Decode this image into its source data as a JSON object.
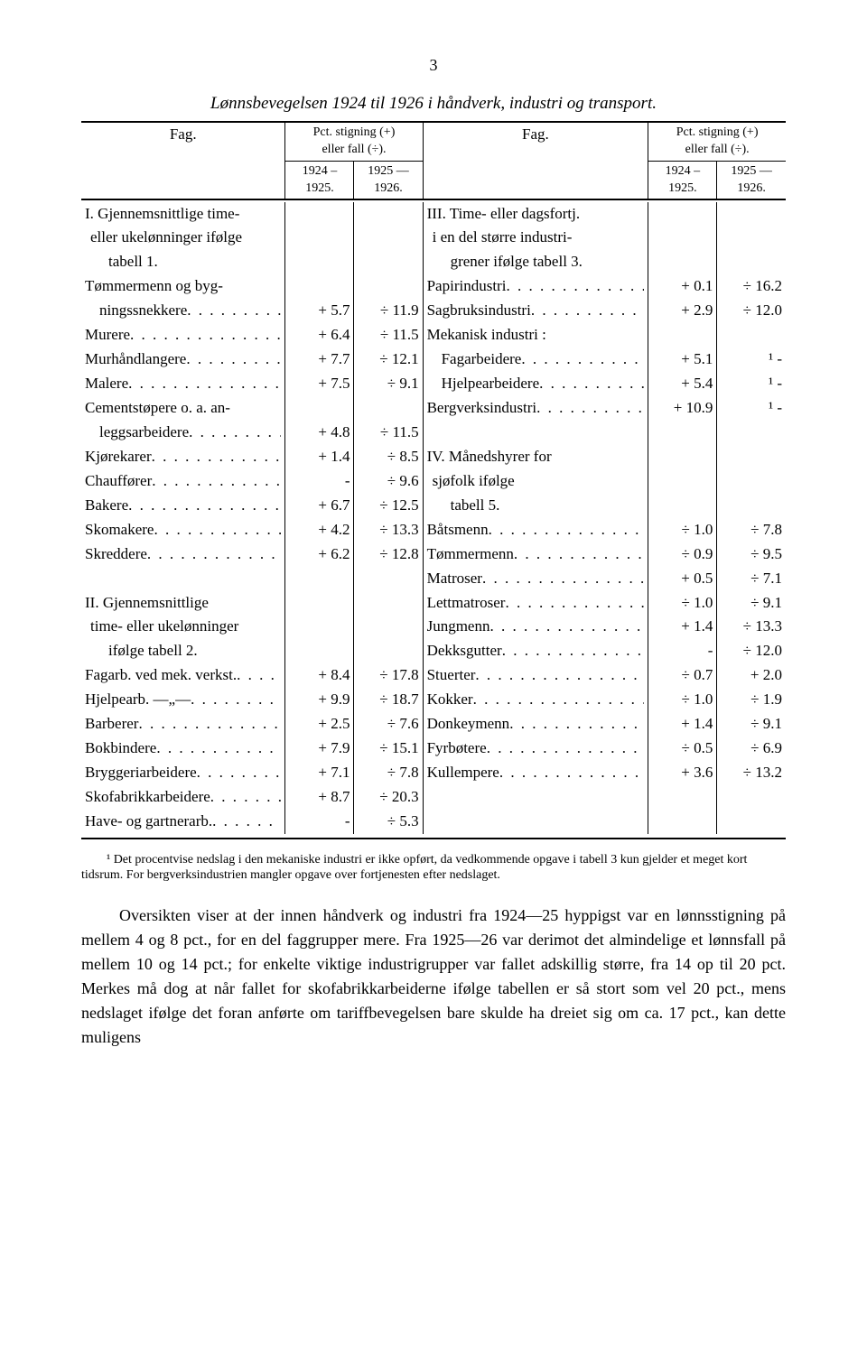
{
  "page_number": "3",
  "title": "Lønnsbevegelsen 1924 til 1926 i håndverk, industri og transport.",
  "header": {
    "fag": "Fag.",
    "pct_top": "Pct. stigning (+)",
    "pct_bot": "eller fall (÷).",
    "yr_a": "1924 –",
    "yr_a2": "1925.",
    "yr_b": "1925 —",
    "yr_b2": "1926."
  },
  "left": {
    "sec1_l1": "I. Gjennemsnittlige time-",
    "sec1_l2": "eller ukelønninger ifølge",
    "sec1_l3": "tabell 1.",
    "sec2_l1": "II. Gjennemsnittlige",
    "sec2_l2": "time- eller ukelønninger",
    "sec2_l3": "ifølge tabell 2.",
    "rows1": [
      {
        "label": "Tømmermenn og byg-",
        "a": "",
        "b": ""
      },
      {
        "label": "ningssnekkere",
        "indent": 1,
        "a": "+  5.7",
        "b": "÷ 11.9"
      },
      {
        "label": "Murere",
        "a": "+  6.4",
        "b": "÷ 11.5"
      },
      {
        "label": "Murhåndlangere",
        "a": "+  7.7",
        "b": "÷ 12.1"
      },
      {
        "label": "Malere",
        "a": "+  7.5",
        "b": "÷  9.1"
      },
      {
        "label": "Cementstøpere o. a. an-",
        "a": "",
        "b": ""
      },
      {
        "label": "leggsarbeidere",
        "indent": 1,
        "a": "+  4.8",
        "b": "÷ 11.5"
      },
      {
        "label": "Kjørekarer",
        "a": "+  1.4",
        "b": "÷  8.5"
      },
      {
        "label": "Chauffører",
        "a": "-",
        "b": "÷  9.6"
      },
      {
        "label": "Bakere",
        "a": "+  6.7",
        "b": "÷ 12.5"
      },
      {
        "label": "Skomakere",
        "a": "+  4.2",
        "b": "÷ 13.3"
      },
      {
        "label": "Skreddere",
        "a": "+  6.2",
        "b": "÷ 12.8"
      }
    ],
    "rows2": [
      {
        "label": "Fagarb. ved mek. verkst.",
        "a": "+  8.4",
        "b": "÷ 17.8"
      },
      {
        "label": "Hjelpearb.     —„—",
        "a": "+  9.9",
        "b": "÷ 18.7"
      },
      {
        "label": "Barberer",
        "a": "+  2.5",
        "b": "÷  7.6"
      },
      {
        "label": "Bokbindere",
        "a": "+  7.9",
        "b": "÷ 15.1"
      },
      {
        "label": "Bryggeriarbeidere",
        "a": "+  7.1",
        "b": "÷  7.8"
      },
      {
        "label": "Skofabrikkarbeidere",
        "a": "+  8.7",
        "b": "÷ 20.3"
      },
      {
        "label": "Have- og gartnerarb.",
        "a": "-",
        "b": "÷  5.3"
      }
    ]
  },
  "right": {
    "sec3_l1": "III. Time- eller dagsfortj.",
    "sec3_l2": "i en del større industri-",
    "sec3_l3": "grener ifølge tabell 3.",
    "sec4_l1": "IV. Månedshyrer for",
    "sec4_l2": "sjøfolk ifølge",
    "sec4_l3": "tabell 5.",
    "rows3": [
      {
        "label": "Papirindustri",
        "a": "+  0.1",
        "b": "÷ 16.2"
      },
      {
        "label": "Sagbruksindustri",
        "a": "+  2.9",
        "b": "÷ 12.0"
      },
      {
        "label": "Mekanisk industri :",
        "a": "",
        "b": ""
      },
      {
        "label": "Fagarbeidere",
        "indent": 1,
        "a": "+  5.1",
        "b": "¹    -"
      },
      {
        "label": "Hjelpearbeidere",
        "indent": 1,
        "a": "+  5.4",
        "b": "¹    -"
      },
      {
        "label": "Bergverksindustri",
        "a": "+ 10.9",
        "b": "¹    -"
      }
    ],
    "rows4": [
      {
        "label": "Båtsmenn",
        "a": "÷  1.0",
        "b": "÷  7.8"
      },
      {
        "label": "Tømmermenn",
        "a": "÷  0.9",
        "b": "÷  9.5"
      },
      {
        "label": "Matroser",
        "a": "+  0.5",
        "b": "÷  7.1"
      },
      {
        "label": "Lettmatroser",
        "a": "÷  1.0",
        "b": "÷  9.1"
      },
      {
        "label": "Jungmenn",
        "a": "+  1.4",
        "b": "÷ 13.3"
      },
      {
        "label": "Dekksgutter",
        "a": "-",
        "b": "÷ 12.0"
      },
      {
        "label": "Stuerter",
        "a": "÷  0.7",
        "b": "+  2.0"
      },
      {
        "label": "Kokker",
        "a": "÷  1.0",
        "b": "÷  1.9"
      },
      {
        "label": "Donkeymenn",
        "a": "+  1.4",
        "b": "÷  9.1"
      },
      {
        "label": "Fyrbøtere",
        "a": "÷  0.5",
        "b": "÷  6.9"
      },
      {
        "label": "Kullempere",
        "a": "+  3.6",
        "b": "÷ 13.2"
      }
    ]
  },
  "footnote": "¹ Det procentvise nedslag i den mekaniske industri er ikke opført, da vedkommende opgave i tabell 3 kun gjelder et meget kort tidsrum.  For bergverksindustrien mangler opgave over fortjenesten efter nedslaget.",
  "body": "Oversikten viser at der innen håndverk og industri fra 1924—25 hyppigst var en lønnsstigning på mellem 4 og 8 pct., for en del faggrupper mere.  Fra 1925—26 var derimot det almindelige et lønnsfall på mellem 10 og 14 pct.; for enkelte viktige industrigrupper var fallet adskillig større, fra 14 op til 20 pct.  Merkes må dog at når fallet for skofabrikkarbeiderne ifølge tabellen er så stort som vel 20 pct., mens nedslaget ifølge det foran anførte om tariffbevegelsen bare skulde ha dreiet sig om ca. 17 pct., kan dette muligens"
}
